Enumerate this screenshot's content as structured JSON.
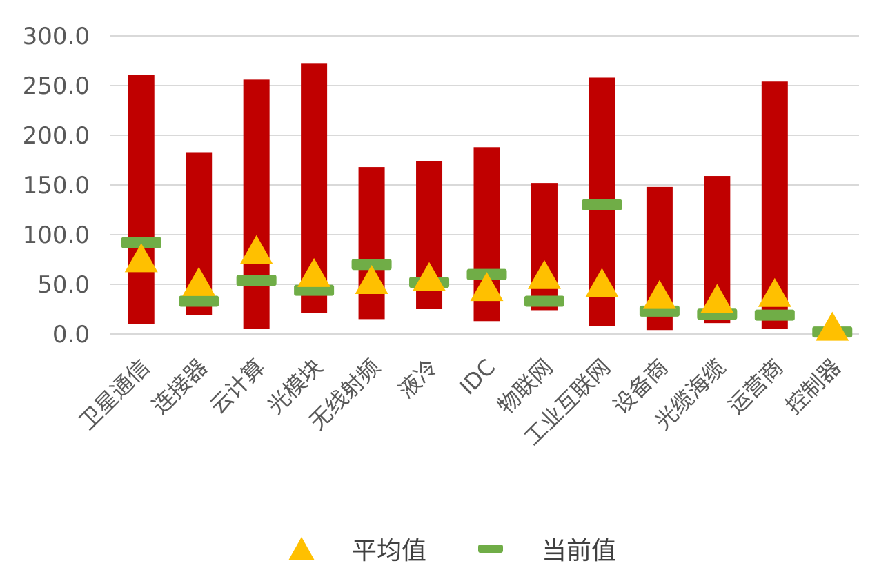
{
  "chart_data": {
    "type": "bar",
    "categories": [
      "卫星通信",
      "连接器",
      "云计算",
      "光模块",
      "无线射频",
      "液冷",
      "IDC",
      "物联网",
      "工业互联网",
      "设备商",
      "光缆海缆",
      "运营商",
      "控制器"
    ],
    "ranges": [
      {
        "low": 10,
        "high": 261
      },
      {
        "low": 19,
        "high": 183
      },
      {
        "low": 5,
        "high": 256
      },
      {
        "low": 21,
        "high": 272
      },
      {
        "low": 15,
        "high": 168
      },
      {
        "low": 25,
        "high": 174
      },
      {
        "low": 13,
        "high": 188
      },
      {
        "low": 24,
        "high": 152
      },
      {
        "low": 8,
        "high": 258
      },
      {
        "low": 4,
        "high": 148
      },
      {
        "low": 11,
        "high": 159
      },
      {
        "low": 5,
        "high": 254
      },
      {
        "low": 0,
        "high": 7
      }
    ],
    "series": [
      {
        "name": "平均值",
        "marker": "triangle",
        "color": "#FFC000",
        "values": [
          72,
          48,
          80,
          57,
          50,
          53,
          43,
          55,
          47,
          35,
          31,
          37,
          3
        ]
      },
      {
        "name": "当前值",
        "marker": "dash",
        "color": "#70AD47",
        "values": [
          92,
          33,
          54,
          44,
          70,
          52,
          60,
          33,
          130,
          23,
          20,
          19,
          2
        ]
      }
    ],
    "bar_color": "#C00000",
    "ylim": [
      0,
      300
    ],
    "yticks": [
      "0.0",
      "50.0",
      "100.0",
      "150.0",
      "200.0",
      "250.0",
      "300.0"
    ],
    "grid": true,
    "legend": "bottom"
  }
}
